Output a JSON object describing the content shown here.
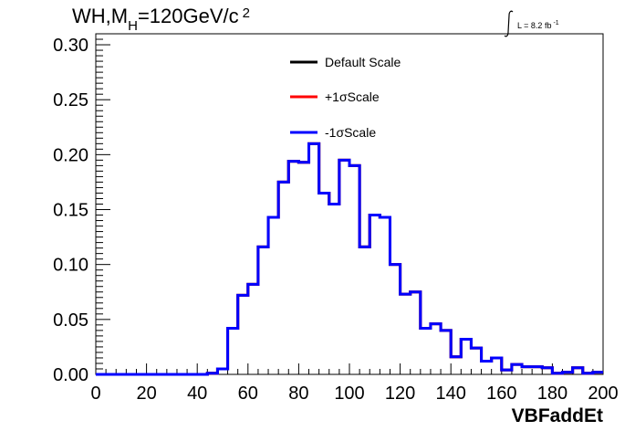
{
  "chart_data": {
    "type": "histogram",
    "title_main": "WH,M",
    "title_sub": "H",
    "title_rest": "=120GeV/c",
    "title_sup": "2",
    "lumi_label": "L = 8.2 fb",
    "lumi_sup": "-1",
    "xlabel": "VBFaddEt",
    "ylabel": "",
    "xlim": [
      0,
      200
    ],
    "ylim": [
      0,
      0.31
    ],
    "x_ticks": [
      "0",
      "20",
      "40",
      "60",
      "80",
      "100",
      "120",
      "140",
      "160",
      "180",
      "200"
    ],
    "y_ticks": [
      "0.00",
      "0.05",
      "0.10",
      "0.15",
      "0.20",
      "0.25",
      "0.30"
    ],
    "legend": [
      "Default Scale",
      "+1σScale",
      "-1σScale"
    ],
    "colors": {
      "default": "#000000",
      "plus": "#ff0000",
      "minus": "#0000ff"
    },
    "bin_edges": [
      0,
      4,
      8,
      12,
      16,
      20,
      24,
      28,
      32,
      36,
      40,
      44,
      48,
      52,
      56,
      60,
      64,
      68,
      72,
      76,
      80,
      84,
      88,
      92,
      96,
      100,
      104,
      108,
      112,
      116,
      120,
      124,
      128,
      132,
      136,
      140,
      144,
      148,
      152,
      156,
      160,
      164,
      168,
      172,
      176,
      180,
      184,
      188,
      192,
      196,
      200
    ],
    "series": [
      {
        "name": "-1σScale",
        "values": [
          0,
          0,
          0,
          0,
          0,
          0,
          0,
          0,
          0,
          0,
          0,
          0.001,
          0.005,
          0.042,
          0.072,
          0.082,
          0.116,
          0.143,
          0.175,
          0.194,
          0.193,
          0.21,
          0.165,
          0.155,
          0.195,
          0.19,
          0.116,
          0.145,
          0.143,
          0.1,
          0.073,
          0.075,
          0.042,
          0.046,
          0.04,
          0.016,
          0.032,
          0.024,
          0.012,
          0.015,
          0.004,
          0.009,
          0.007,
          0.007,
          0.006,
          0.001,
          0.002,
          0.006,
          0.001,
          0.002
        ]
      }
    ]
  }
}
